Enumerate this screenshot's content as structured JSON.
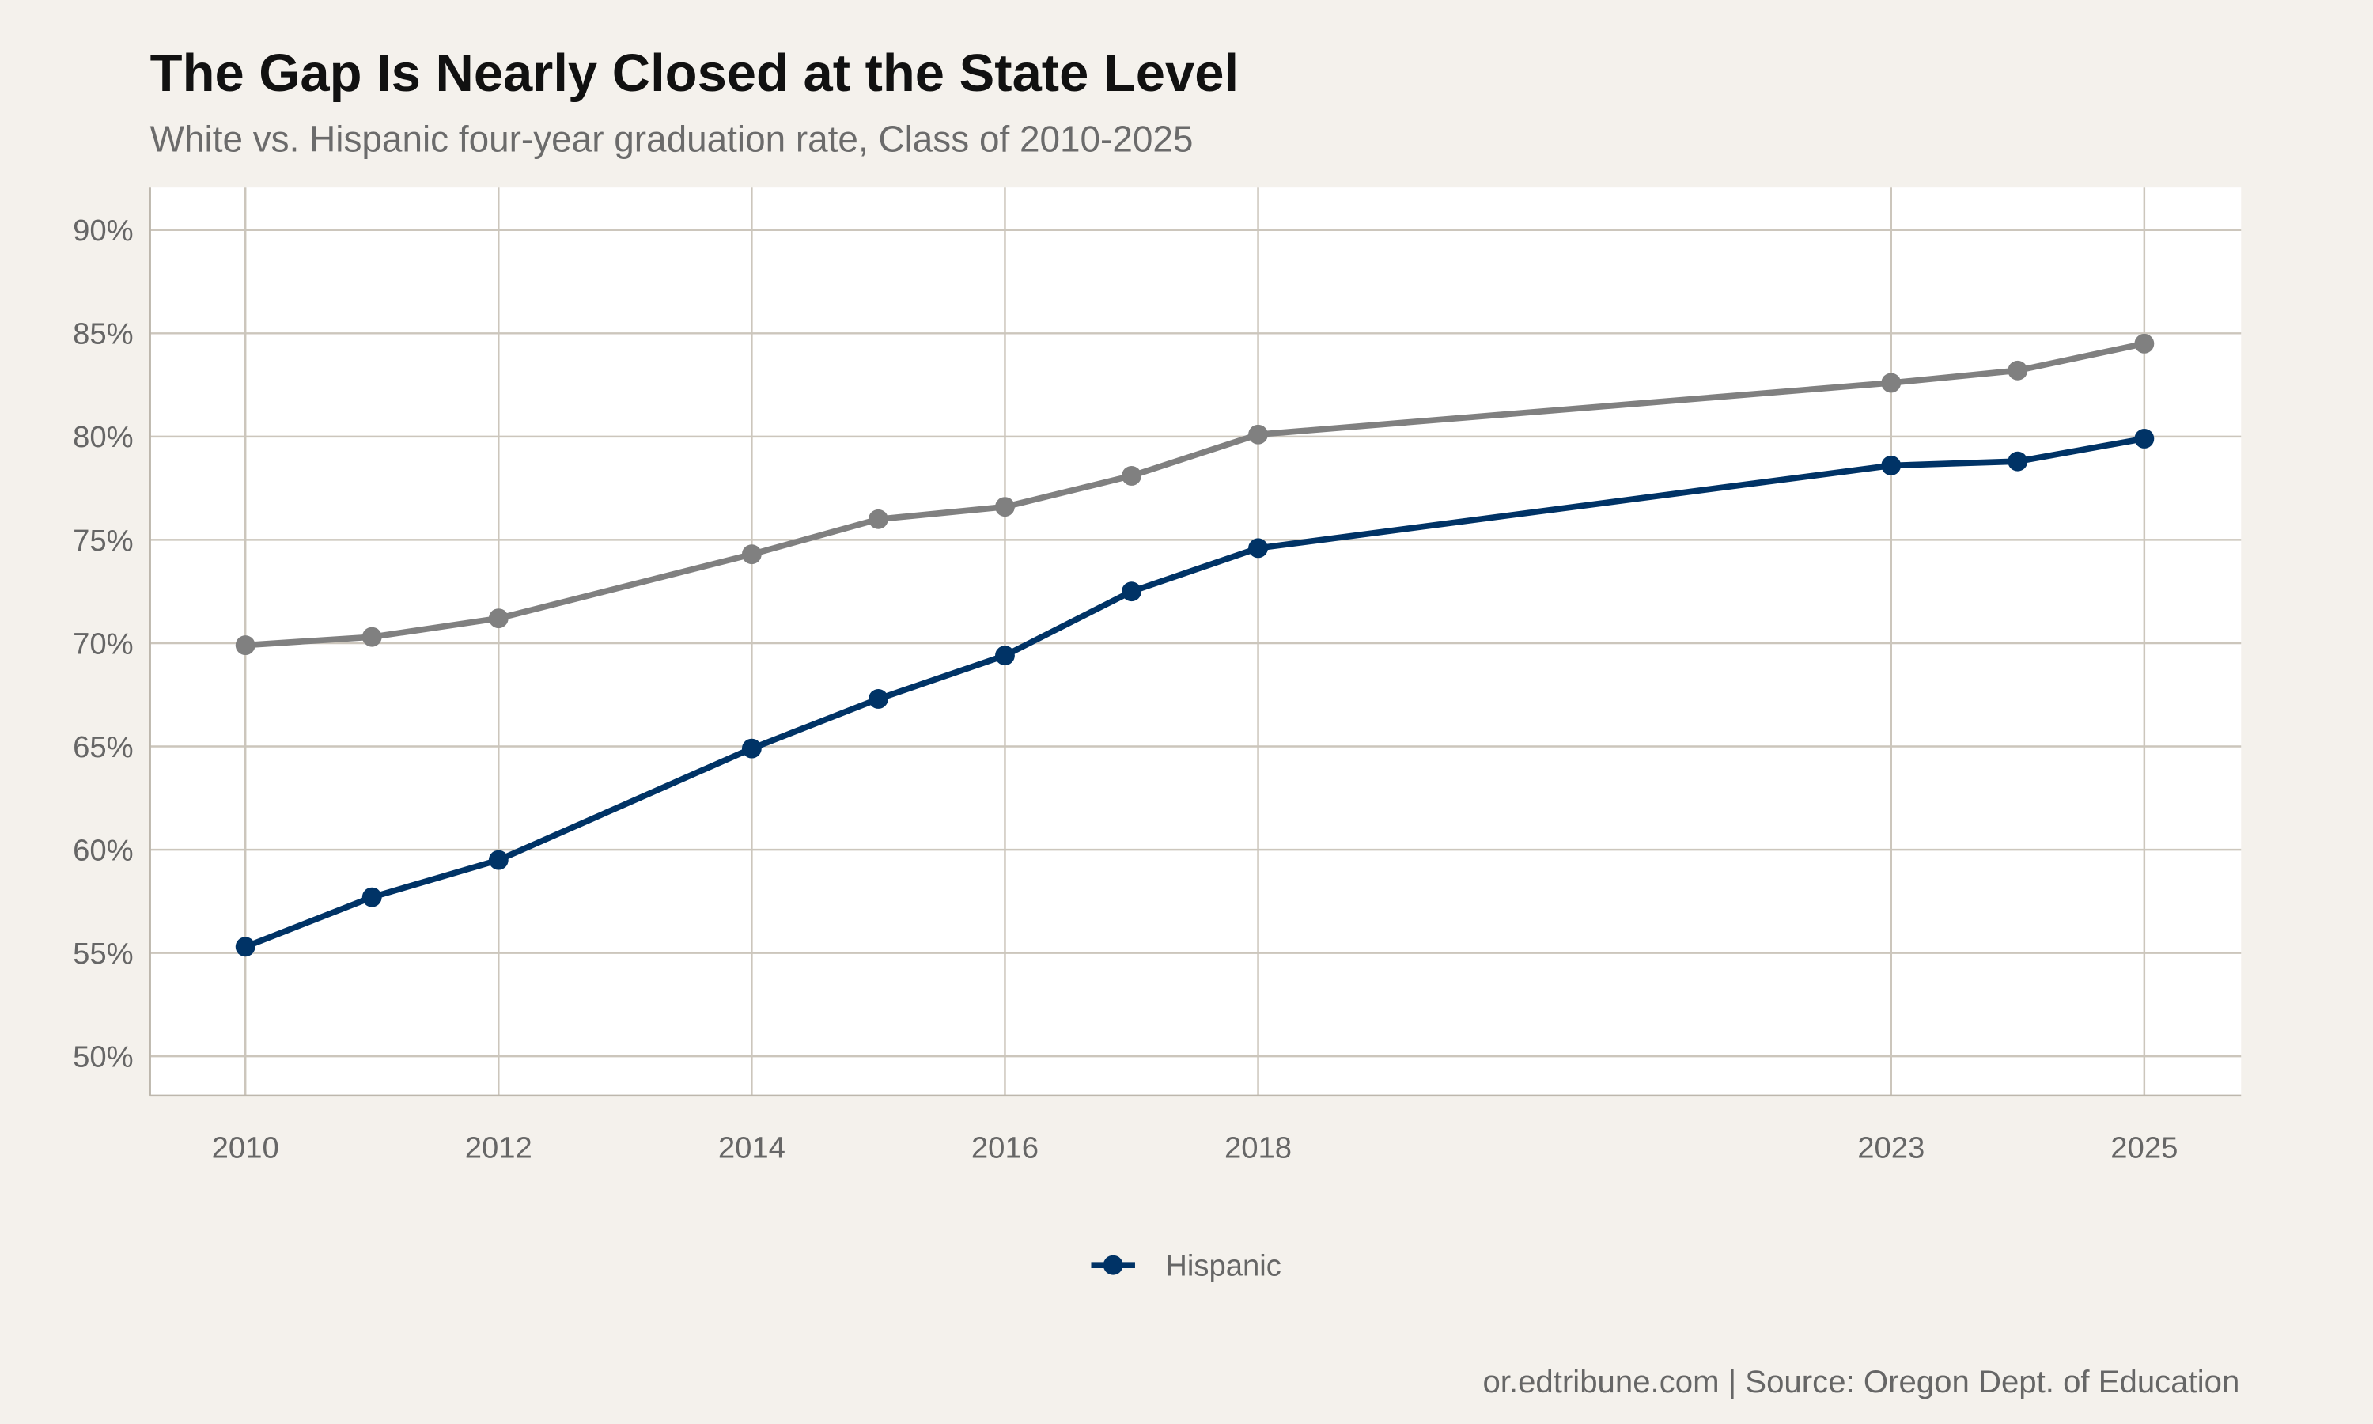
{
  "chart_data": {
    "type": "line",
    "title": "The Gap Is Nearly Closed at the State Level",
    "subtitle": "White vs. Hispanic four-year graduation rate, Class of 2010-2025",
    "caption": "or.edtribune.com | Source: Oregon Dept. of Education",
    "xlabel": "",
    "ylabel": "",
    "x": [
      2010,
      2011,
      2012,
      2014,
      2015,
      2016,
      2017,
      2018,
      2023,
      2024,
      2025
    ],
    "x_ticks": [
      2010,
      2012,
      2014,
      2016,
      2018,
      2023,
      2025
    ],
    "x_tick_labels": [
      "2010",
      "2012",
      "2014",
      "2016",
      "2018",
      "2023",
      "2025"
    ],
    "y_ticks": [
      50,
      55,
      60,
      65,
      70,
      75,
      80,
      85,
      90
    ],
    "y_tick_labels": [
      "50%",
      "55%",
      "60%",
      "65%",
      "70%",
      "75%",
      "80%",
      "85%",
      "90%"
    ],
    "ylim": [
      48,
      92
    ],
    "xlim": [
      2009.2,
      2025.8
    ],
    "grid": true,
    "legend_position": "bottom",
    "series": [
      {
        "color": "#808080",
        "values": [
          69.9,
          70.3,
          71.2,
          74.3,
          76.0,
          76.6,
          78.1,
          80.1,
          82.6,
          83.2,
          84.5
        ]
      },
      {
        "name": "Hispanic",
        "color": "#003366",
        "values": [
          55.3,
          57.7,
          59.5,
          64.9,
          67.3,
          69.4,
          72.5,
          74.6,
          78.6,
          78.8,
          79.9
        ]
      }
    ],
    "legend": [
      "Hispanic"
    ]
  },
  "colors": {
    "background": "#f4f1ec",
    "panel": "#ffffff",
    "grid": "#ccc6bc"
  }
}
